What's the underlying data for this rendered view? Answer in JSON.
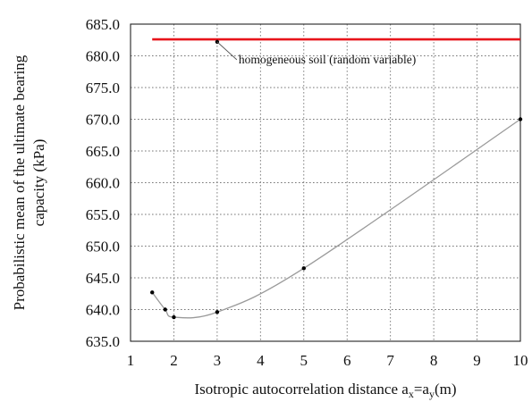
{
  "chart_data": {
    "type": "line",
    "xlabel": "Isotropic autocorrelation distance a",
    "xlabel_sub_x": "x",
    "xlabel_mid": "=a",
    "xlabel_sub_y": "y",
    "xlabel_unit": "(m)",
    "ylabel_line1": "Probabilistic mean of the ultimate bearing",
    "ylabel_line2": "capacity (kPa)",
    "xlim": [
      1,
      10
    ],
    "ylim": [
      635.0,
      685.0
    ],
    "xticks": [
      "1",
      "2",
      "3",
      "4",
      "5",
      "6",
      "7",
      "8",
      "9",
      "10"
    ],
    "yticks": [
      "635.0",
      "640.0",
      "645.0",
      "650.0",
      "655.0",
      "660.0",
      "665.0",
      "670.0",
      "675.0",
      "680.0",
      "685.0"
    ],
    "grid": true,
    "series": [
      {
        "values": [
          {
            "x": 1.5,
            "y": 642.7
          },
          {
            "x": 1.8,
            "y": 640.0
          },
          {
            "x": 2.0,
            "y": 638.8
          },
          {
            "x": 3.0,
            "y": 639.6
          },
          {
            "x": 5.0,
            "y": 646.5
          },
          {
            "x": 10.0,
            "y": 670.0
          }
        ],
        "color": "#9a9a9a"
      },
      {
        "values": [
          {
            "x": 1.5,
            "y": 682.6
          },
          {
            "x": 10.0,
            "y": 682.6
          }
        ],
        "color": "#e8141b"
      }
    ],
    "annotation": {
      "text": "homogeneous soil (random variable)",
      "point": {
        "x": 3.0,
        "y": 682.2
      }
    }
  }
}
